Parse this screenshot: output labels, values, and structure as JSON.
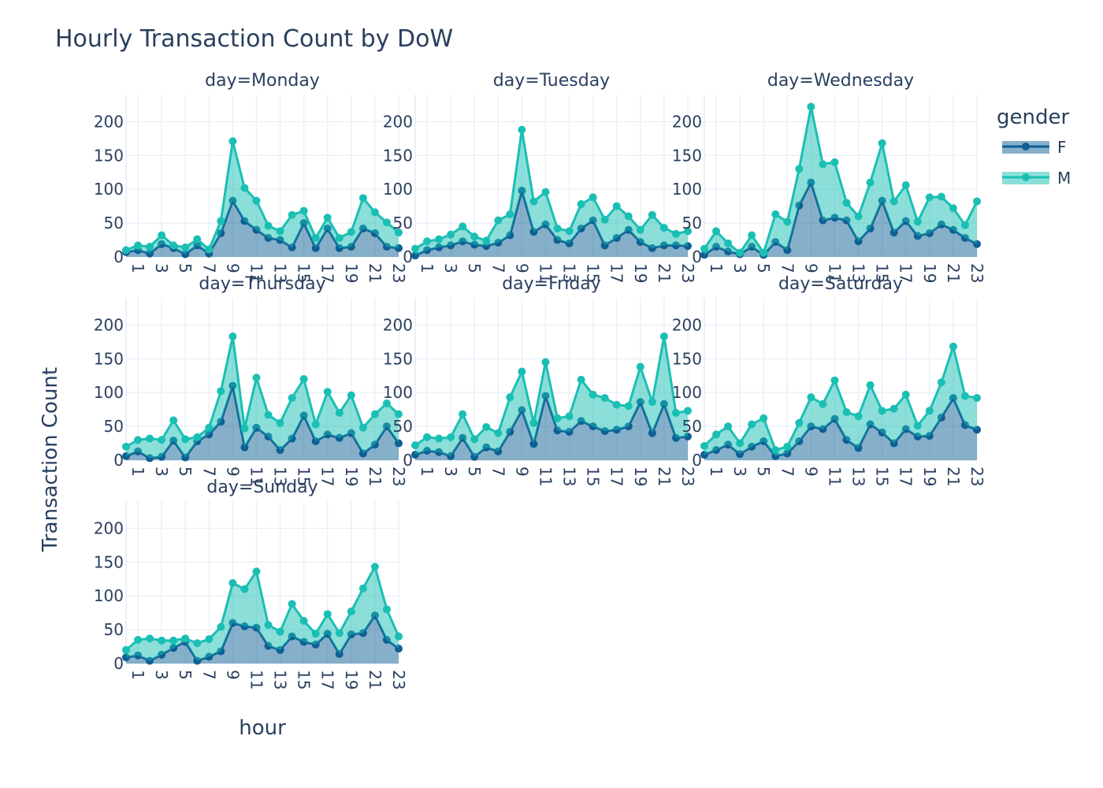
{
  "chart_data": {
    "type": "area",
    "title": "Hourly Transaction Count by DoW",
    "xlabel": "hour",
    "ylabel": "Transaction Count",
    "ylim": [
      0,
      240
    ],
    "yticks": [
      0,
      50,
      100,
      150,
      200
    ],
    "xticks": [
      1,
      3,
      5,
      7,
      9,
      11,
      13,
      15,
      17,
      19,
      21,
      23
    ],
    "xlim": [
      0,
      23
    ],
    "grid": true,
    "stacked": true,
    "legend": {
      "title": "gender",
      "placement": "top-right"
    },
    "hours": [
      0,
      1,
      2,
      3,
      4,
      5,
      6,
      7,
      8,
      9,
      10,
      11,
      12,
      13,
      14,
      15,
      16,
      17,
      18,
      19,
      20,
      21,
      22,
      23
    ],
    "series_styles": [
      {
        "name": "F",
        "color": "#0e5f94",
        "fill": "rgba(14,95,148,0.5)"
      },
      {
        "name": "M",
        "color": "#1abfb4",
        "fill": "rgba(26,191,180,0.5)"
      }
    ],
    "facets": [
      {
        "title": "day=Monday",
        "series": [
          {
            "name": "F",
            "values": [
              7,
              10,
              5,
              19,
              13,
              4,
              17,
              5,
              35,
              83,
              53,
              40,
              28,
              25,
              14,
              50,
              13,
              42,
              13,
              15,
              42,
              35,
              15,
              13
            ]
          },
          {
            "name": "M",
            "values": [
              10,
              17,
              15,
              32,
              17,
              14,
              26,
              11,
              53,
              171,
              102,
              83,
              46,
              38,
              62,
              68,
              28,
              58,
              28,
              37,
              87,
              66,
              51,
              36
            ]
          }
        ]
      },
      {
        "title": "day=Tuesday",
        "series": [
          {
            "name": "F",
            "values": [
              2,
              10,
              14,
              17,
              23,
              18,
              16,
              21,
              32,
              98,
              37,
              48,
              25,
              20,
              42,
              54,
              17,
              28,
              40,
              22,
              13,
              17,
              17,
              16
            ]
          },
          {
            "name": "M",
            "values": [
              12,
              23,
              26,
              33,
              45,
              30,
              24,
              54,
              63,
              188,
              82,
              96,
              42,
              38,
              78,
              88,
              55,
              75,
              60,
              40,
              62,
              43,
              34,
              38
            ]
          }
        ]
      },
      {
        "title": "day=Wednesday",
        "series": [
          {
            "name": "F",
            "values": [
              3,
              15,
              8,
              4,
              15,
              3,
              22,
              10,
              76,
              110,
              54,
              58,
              54,
              23,
              42,
              83,
              36,
              53,
              31,
              35,
              48,
              40,
              28,
              19
            ]
          },
          {
            "name": "M",
            "values": [
              12,
              38,
              20,
              6,
              32,
              6,
              63,
              52,
              130,
              222,
              137,
              140,
              80,
              60,
              110,
              168,
              82,
              106,
              52,
              88,
              89,
              72,
              47,
              82
            ]
          }
        ]
      },
      {
        "title": "day=Thursday",
        "series": [
          {
            "name": "F",
            "values": [
              6,
              13,
              3,
              5,
              29,
              4,
              28,
              38,
              57,
              110,
              19,
              48,
              35,
              15,
              32,
              66,
              28,
              38,
              33,
              40,
              10,
              23,
              50,
              25
            ]
          },
          {
            "name": "M",
            "values": [
              20,
              30,
              32,
              30,
              59,
              31,
              34,
              48,
              102,
              183,
              47,
              122,
              67,
              55,
              92,
              120,
              53,
              101,
              70,
              96,
              48,
              68,
              84,
              68
            ]
          }
        ]
      },
      {
        "title": "day=Friday",
        "series": [
          {
            "name": "F",
            "values": [
              8,
              14,
              12,
              6,
              33,
              5,
              19,
              13,
              42,
              74,
              24,
              95,
              44,
              42,
              58,
              50,
              43,
              45,
              50,
              86,
              40,
              83,
              33,
              35
            ]
          },
          {
            "name": "M",
            "values": [
              22,
              34,
              32,
              34,
              68,
              31,
              49,
              40,
              93,
              131,
              55,
              145,
              62,
              65,
              119,
              97,
              92,
              82,
              80,
              138,
              86,
              183,
              70,
              73
            ]
          }
        ]
      },
      {
        "title": "day=Saturday",
        "series": [
          {
            "name": "F",
            "values": [
              8,
              15,
              23,
              9,
              20,
              28,
              6,
              10,
              28,
              50,
              46,
              61,
              30,
              18,
              53,
              41,
              25,
              46,
              35,
              36,
              63,
              92,
              52,
              45
            ]
          },
          {
            "name": "M",
            "values": [
              21,
              38,
              50,
              25,
              53,
              62,
              15,
              20,
              55,
              93,
              83,
              118,
              71,
              65,
              111,
              73,
              76,
              97,
              51,
              73,
              115,
              168,
              95,
              92
            ]
          }
        ]
      },
      {
        "title": "day=Sunday",
        "series": [
          {
            "name": "F",
            "values": [
              9,
              12,
              4,
              13,
              23,
              32,
              4,
              10,
              18,
              60,
              55,
              53,
              26,
              20,
              40,
              32,
              28,
              44,
              14,
              43,
              45,
              71,
              35,
              22
            ]
          },
          {
            "name": "M",
            "values": [
              20,
              35,
              37,
              34,
              34,
              37,
              30,
              36,
              54,
              119,
              110,
              136,
              57,
              47,
              88,
              63,
              44,
              73,
              45,
              77,
              111,
              143,
              80,
              40
            ]
          }
        ]
      }
    ]
  }
}
